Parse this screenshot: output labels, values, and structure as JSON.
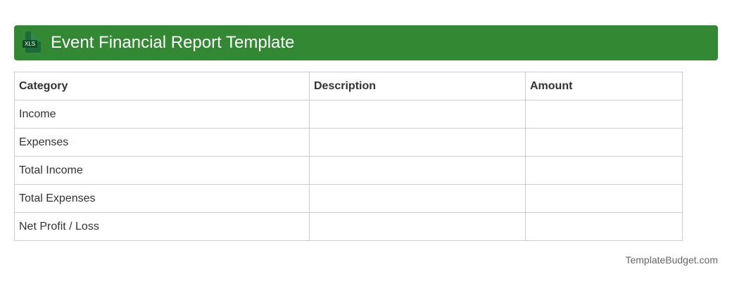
{
  "header": {
    "title": "Event Financial Report Template",
    "icon_label": "XLS"
  },
  "table": {
    "columns": [
      "Category",
      "Description",
      "Amount"
    ],
    "rows": [
      [
        "Income",
        "",
        ""
      ],
      [
        "Expenses",
        "",
        ""
      ],
      [
        "Total Income",
        "",
        ""
      ],
      [
        "Total Expenses",
        "",
        ""
      ],
      [
        "Net Profit / Loss",
        "",
        ""
      ]
    ]
  },
  "footer": {
    "text": "TemplateBudget.com"
  },
  "colors": {
    "header": "#338833"
  }
}
